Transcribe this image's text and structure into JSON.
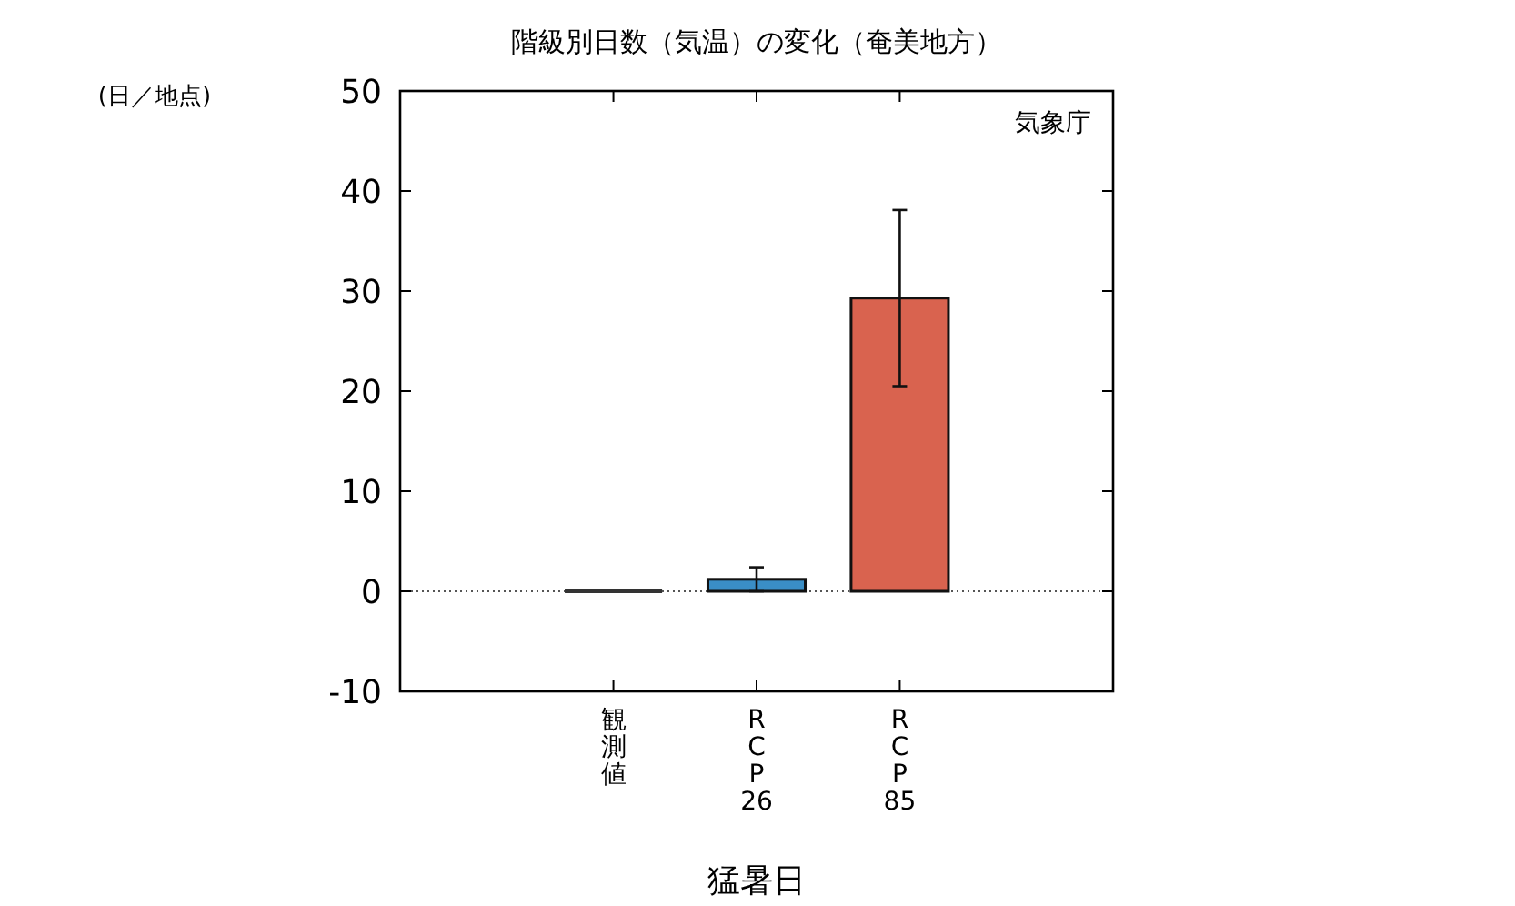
{
  "chart_data": {
    "type": "bar",
    "title": "階級別日数（気温）の変化（奄美地方）",
    "xlabel": "猛暑日",
    "ylabel": "(日／地点)",
    "categories": [
      "観測値",
      "RCP26",
      "RCP85"
    ],
    "values": [
      0,
      1.2,
      29.3
    ],
    "colors": [
      "#333333",
      "#3a8ec6",
      "#d9634f"
    ],
    "errors": [
      null,
      1.2,
      8.8
    ],
    "ylim": [
      -10,
      50
    ],
    "yticks": [
      -10,
      0,
      10,
      20,
      30,
      40,
      50
    ],
    "ref_lines": [
      {
        "axis": "y",
        "value": 0,
        "line_style": "dotted",
        "color": "#555555"
      }
    ],
    "annotations": [
      "気象庁"
    ]
  }
}
